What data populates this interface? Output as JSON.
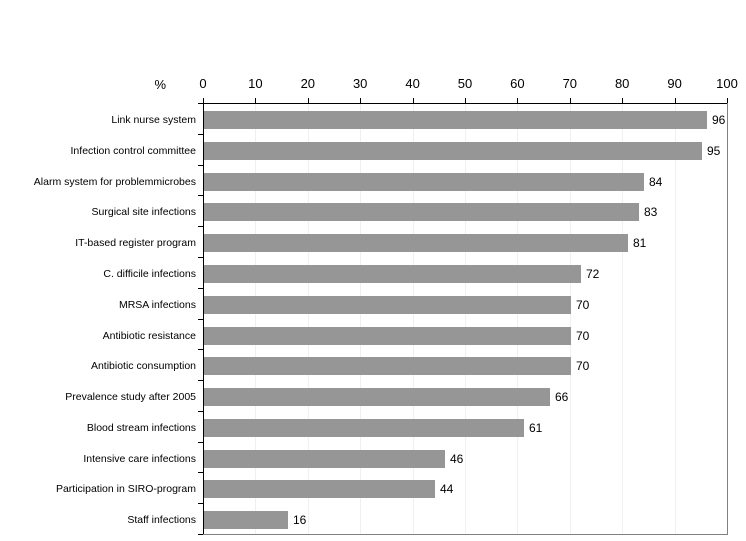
{
  "chart_data": {
    "type": "bar",
    "orientation": "horizontal",
    "title": "",
    "xlabel": "%",
    "ylabel": "",
    "categories": [
      "Link nurse system",
      "Infection control committee",
      "Alarm system for problemmicrobes",
      "Surgical site infections",
      "IT-based register program",
      "C. difficile infections",
      "MRSA infections",
      "Antibiotic resistance",
      "Antibiotic consumption",
      "Prevalence study after 2005",
      "Blood stream infections",
      "Intensive care infections",
      "Participation in SIRO-program",
      "Staff infections"
    ],
    "values": [
      96,
      95,
      84,
      83,
      81,
      72,
      70,
      70,
      70,
      66,
      61,
      46,
      44,
      16
    ],
    "xlim": [
      0,
      100
    ],
    "x_ticks": [
      0,
      10,
      20,
      30,
      40,
      50,
      60,
      70,
      80,
      90,
      100
    ],
    "grid": true,
    "legend": "none",
    "colors": {
      "bar": "#969696",
      "gridline": "#f0f0f0",
      "axis": "#000000",
      "plot_border": "#808080",
      "background": "#ffffff",
      "text": "#000000"
    }
  }
}
